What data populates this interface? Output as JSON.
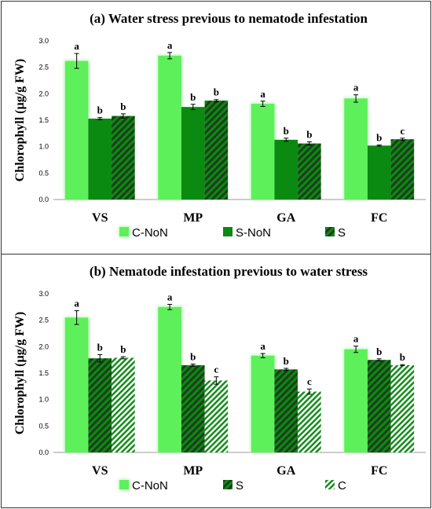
{
  "colors": {
    "light_green": "#5ef05a",
    "light_glow": "#b8f7b4",
    "dark_green": "#0b8a12",
    "hatch_dark": "#1d3d1d",
    "hatch_light": "#9fe19b",
    "axis": "#999999"
  },
  "chart_data": [
    {
      "id": "a",
      "type": "bar",
      "title": "(a) Water stress previous to nematode infestation",
      "ylabel": "Chlorophyll  (µg/g FW)",
      "xlabel": "",
      "ylim": [
        0,
        3
      ],
      "yticks": [
        "0.0",
        "0.5",
        "1.0",
        "1.5",
        "2.0",
        "2.5",
        "3.0"
      ],
      "categories": [
        "VS",
        "MP",
        "GA",
        "FC"
      ],
      "legend_position": "bottom",
      "series": [
        {
          "name": "C-NoN",
          "style": "light",
          "values": [
            2.62,
            2.72,
            1.81,
            1.91
          ],
          "errors": [
            0.14,
            0.06,
            0.05,
            0.07
          ],
          "labels": [
            "a",
            "a",
            "a",
            "a"
          ]
        },
        {
          "name": "S-NoN",
          "style": "dark",
          "values": [
            1.53,
            1.75,
            1.13,
            1.02
          ],
          "errors": [
            0.02,
            0.05,
            0.03,
            0.01
          ],
          "labels": [
            "b",
            "b",
            "b",
            "b"
          ]
        },
        {
          "name": "S",
          "style": "hatch-dark",
          "values": [
            1.58,
            1.87,
            1.06,
            1.14
          ],
          "errors": [
            0.04,
            0.02,
            0.03,
            0.02
          ],
          "labels": [
            "b",
            "b",
            "b",
            "c"
          ]
        }
      ]
    },
    {
      "id": "b",
      "type": "bar",
      "title": "(b) Nematode infestation previous to water stress",
      "ylabel": "Chlorophyll  (µg/g FW)",
      "xlabel": "",
      "ylim": [
        0,
        3
      ],
      "yticks": [
        "0.0",
        "0.5",
        "1.0",
        "1.5",
        "2.0",
        "2.5",
        "3.0"
      ],
      "categories": [
        "VS",
        "MP",
        "GA",
        "FC"
      ],
      "legend_position": "bottom",
      "series": [
        {
          "name": "C-NoN",
          "style": "light",
          "values": [
            2.55,
            2.75,
            1.83,
            1.95
          ],
          "errors": [
            0.13,
            0.05,
            0.04,
            0.06
          ],
          "labels": [
            "a",
            "a",
            "a",
            "a"
          ]
        },
        {
          "name": "S",
          "style": "hatch-dark",
          "values": [
            1.78,
            1.65,
            1.57,
            1.75
          ],
          "errors": [
            0.07,
            0.02,
            0.02,
            0.02
          ],
          "labels": [
            "b",
            "b",
            "b",
            "b"
          ]
        },
        {
          "name": "C",
          "style": "hatch-light",
          "values": [
            1.79,
            1.36,
            1.15,
            1.65
          ],
          "errors": [
            0.02,
            0.07,
            0.05,
            0.01
          ],
          "labels": [
            "b",
            "c",
            "c",
            "b"
          ]
        }
      ]
    }
  ]
}
